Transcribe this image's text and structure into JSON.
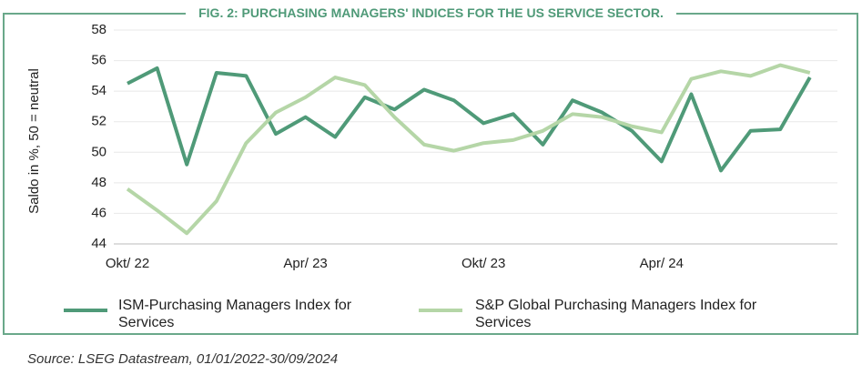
{
  "chart_data": {
    "type": "line",
    "title": "FIG. 2: PURCHASING MANAGERS' INDICES FOR THE US SERVICE SECTOR.",
    "y_label": "Saldo in %, 50 = neutral",
    "categories": [
      "Okt/ 22",
      null,
      null,
      null,
      null,
      null,
      "Apr/ 23",
      null,
      null,
      null,
      null,
      null,
      "Okt/ 23",
      null,
      null,
      null,
      null,
      null,
      "Apr/ 24",
      null,
      null,
      null,
      null,
      null
    ],
    "series": [
      {
        "name": "ISM-Purchasing Managers Index for Services",
        "color": "#4f9a78",
        "values": [
          54.5,
          55.5,
          49.2,
          55.2,
          55.0,
          51.2,
          52.3,
          51.0,
          53.6,
          52.8,
          54.1,
          53.4,
          51.9,
          52.5,
          50.5,
          53.4,
          52.6,
          51.4,
          49.4,
          53.8,
          48.8,
          51.4,
          51.5,
          54.9
        ]
      },
      {
        "name": "S&P Global Purchasing Managers Index for Services",
        "color": "#b5d6a7",
        "values": [
          47.6,
          46.2,
          44.7,
          46.8,
          50.6,
          52.6,
          53.6,
          54.9,
          54.4,
          52.3,
          50.5,
          50.1,
          50.6,
          50.8,
          51.4,
          52.5,
          52.3,
          51.7,
          51.3,
          54.8,
          55.3,
          55.0,
          55.7,
          55.2
        ]
      }
    ],
    "ylim": [
      44,
      58
    ],
    "yticks": [
      44,
      46,
      48,
      50,
      52,
      54,
      56,
      58
    ],
    "grid": true,
    "source": "Source: LSEG Datastream, 01/01/2022-30/09/2024"
  }
}
